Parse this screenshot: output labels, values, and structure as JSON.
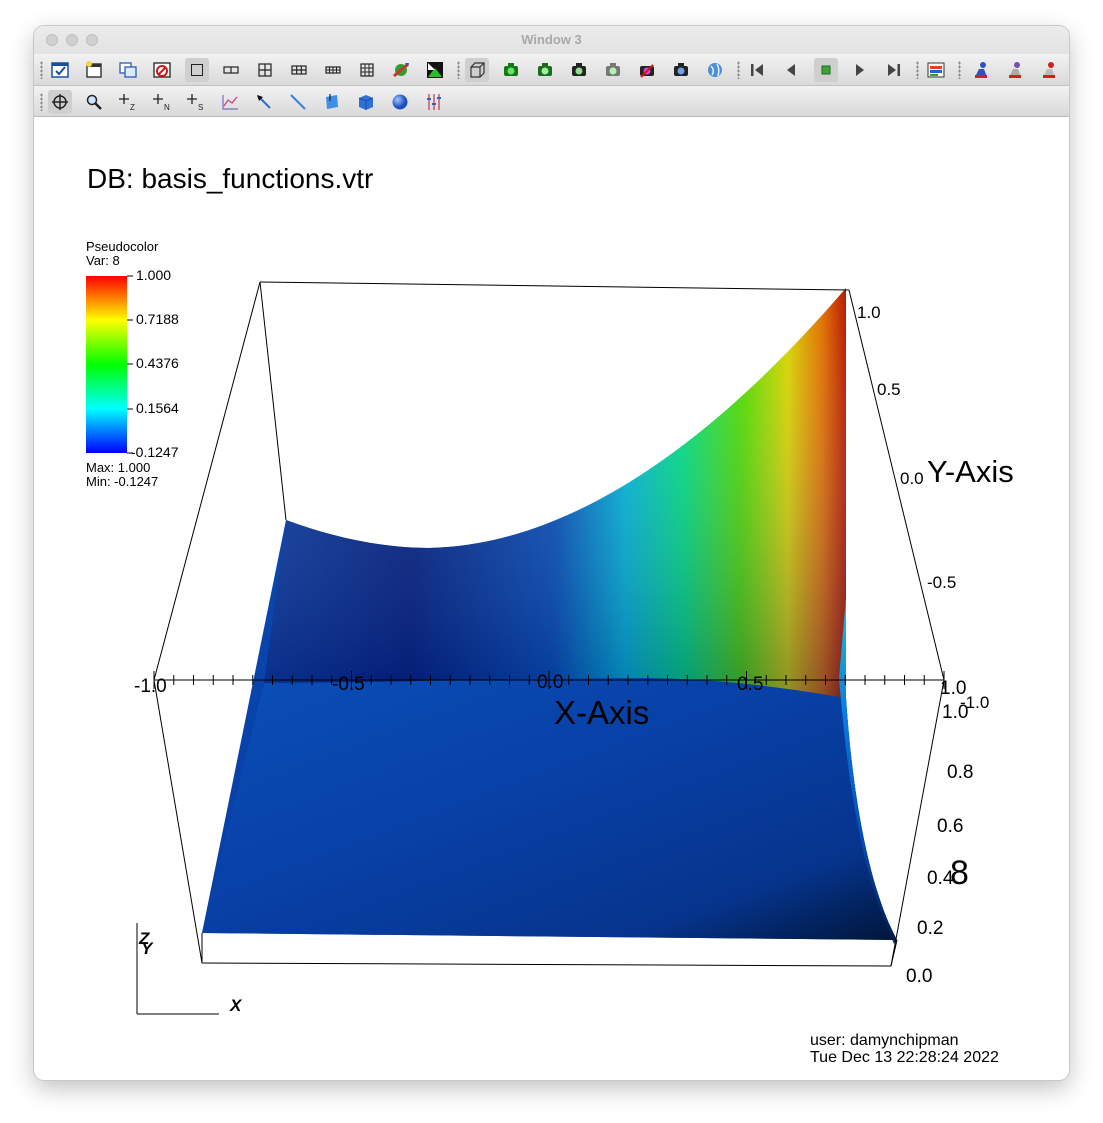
{
  "window": {
    "title": "Window 3"
  },
  "toolbar1": {
    "icons": [
      "active-window-icon",
      "new-window-icon",
      "clone-window-icon",
      "delete-window-icon",
      "layout-1x1-icon",
      "layout-1x2-icon",
      "layout-2x2-icon",
      "layout-2x3-icon",
      "layout-2x4-icon",
      "layout-3x3-icon",
      "spin-mode-icon",
      "full-frame-icon",
      "perspective-icon",
      "save-view-icon",
      "camera-icon",
      "camera2-icon",
      "camera3-icon",
      "camera-plots-icon",
      "camera-save-icon",
      "globe-icon",
      "step-back-icon",
      "reverse-play-icon",
      "stop-icon",
      "play-icon",
      "step-forward-icon",
      "info-icon",
      "lock-view-icon",
      "lock-time-icon",
      "lock-tools-icon"
    ]
  },
  "toolbar2": {
    "icons": [
      "navigate-icon",
      "zoom-icon",
      "pick-z-icon",
      "pick-n-icon",
      "pick-s-icon",
      "lineout-icon",
      "pick-tool-icon",
      "line-tool-icon",
      "plane-tool-icon",
      "box-tool-icon",
      "sphere-tool-icon",
      "axis-restriction-icon"
    ]
  },
  "viz": {
    "db_label": "DB: basis_functions.vtr",
    "legend": {
      "title": "Pseudocolor",
      "var": "Var: 8",
      "ticks": [
        "1.000",
        "0.7188",
        "0.4376",
        "0.1564",
        "-0.1247"
      ],
      "max_label": "Max:  1.000",
      "min_label": "Min: -0.1247"
    },
    "x_axis": {
      "title": "X-Axis",
      "ticks": [
        "-1.0",
        "-0.5",
        "0.0",
        "0.5",
        "1.0"
      ]
    },
    "y_axis": {
      "title": "Y-Axis",
      "ticks": [
        "1.0",
        "0.5",
        "0.0",
        "-0.5",
        "-1.0"
      ]
    },
    "z_axis": {
      "title": "8",
      "ticks": [
        "1.0",
        "0.8",
        "0.6",
        "0.4",
        "0.2",
        "0.0"
      ]
    },
    "triad": {
      "z": "Z",
      "y": "Y",
      "x": "X"
    },
    "user_label": "user: damynchipman",
    "date_label": "Tue Dec 13 22:28:24 2022"
  }
}
